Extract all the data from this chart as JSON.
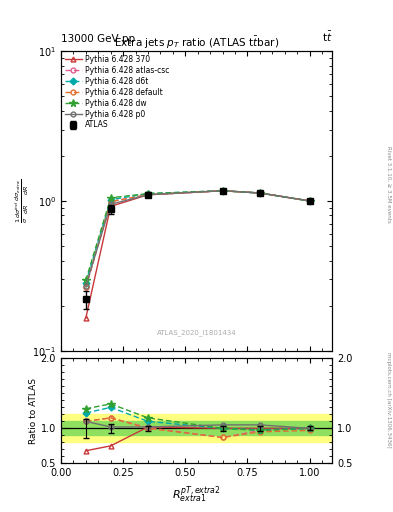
{
  "title": "Extra jets $p_T$ ratio (ATLAS t$\\bar{t}$bar)",
  "top_left_label": "13000 GeV pp",
  "top_right_label": "t$\\bar{t}$",
  "watermark": "ATLAS_2020_I1801434",
  "right_text_top": "Rivet 3.1.10, ≥ 3.5M events",
  "right_text_bot": "mcplots.cern.ch [arXiv:1306.3436]",
  "ylabel_main": "$\\frac{1}{\\sigma}\\frac{d\\sigma^{incl}}{dR}\\frac{d\\sigma_{extra}}{dR}$",
  "ylabel_ratio": "Ratio to ATLAS",
  "xlabel": "$R^{pT,extra2}_{extra1}$",
  "x_values": [
    0.1,
    0.2,
    0.35,
    0.65,
    0.8,
    1.0
  ],
  "ATLAS_y": [
    0.22,
    0.88,
    1.1,
    1.17,
    1.13,
    1.0
  ],
  "ATLAS_yerr": [
    0.03,
    0.06,
    0.04,
    0.04,
    0.04,
    0.03
  ],
  "py370_y": [
    0.165,
    0.92,
    1.1,
    1.17,
    1.13,
    1.0
  ],
  "pyac_y": [
    0.265,
    0.99,
    1.1,
    1.17,
    1.13,
    1.0
  ],
  "pyd6t_y": [
    0.285,
    1.02,
    1.12,
    1.17,
    1.13,
    1.0
  ],
  "pydef_y": [
    0.265,
    0.99,
    1.1,
    1.17,
    1.13,
    1.0
  ],
  "pydw_y": [
    0.295,
    1.05,
    1.12,
    1.17,
    1.13,
    1.0
  ],
  "pyp0_y": [
    0.27,
    0.95,
    1.1,
    1.17,
    1.13,
    1.0
  ],
  "r370": [
    0.68,
    0.75,
    1.02,
    1.0,
    1.0,
    1.0
  ],
  "rac": [
    1.1,
    1.15,
    1.01,
    0.87,
    0.97,
    1.0
  ],
  "rd6t": [
    1.22,
    1.3,
    1.1,
    1.0,
    0.98,
    1.0
  ],
  "rdef": [
    1.1,
    1.15,
    1.0,
    0.87,
    0.95,
    0.97
  ],
  "rdw": [
    1.28,
    1.35,
    1.15,
    1.0,
    0.97,
    1.0
  ],
  "rp0": [
    1.1,
    1.02,
    1.02,
    1.05,
    1.05,
    1.0
  ],
  "color_370": "#c8373a",
  "color_atlascac": "#e06090",
  "color_d6t": "#00aaaa",
  "color_default": "#e07030",
  "color_dw": "#30a030",
  "color_p0": "#707070",
  "color_ATLAS": "#000000",
  "band_yellow_lo": 0.8,
  "band_yellow_hi": 1.2,
  "band_green_lo": 0.9,
  "band_green_hi": 1.1,
  "xlim": [
    0.0,
    1.09
  ],
  "ylim_main": [
    0.1,
    10
  ],
  "ylim_ratio": [
    0.5,
    2.0
  ]
}
